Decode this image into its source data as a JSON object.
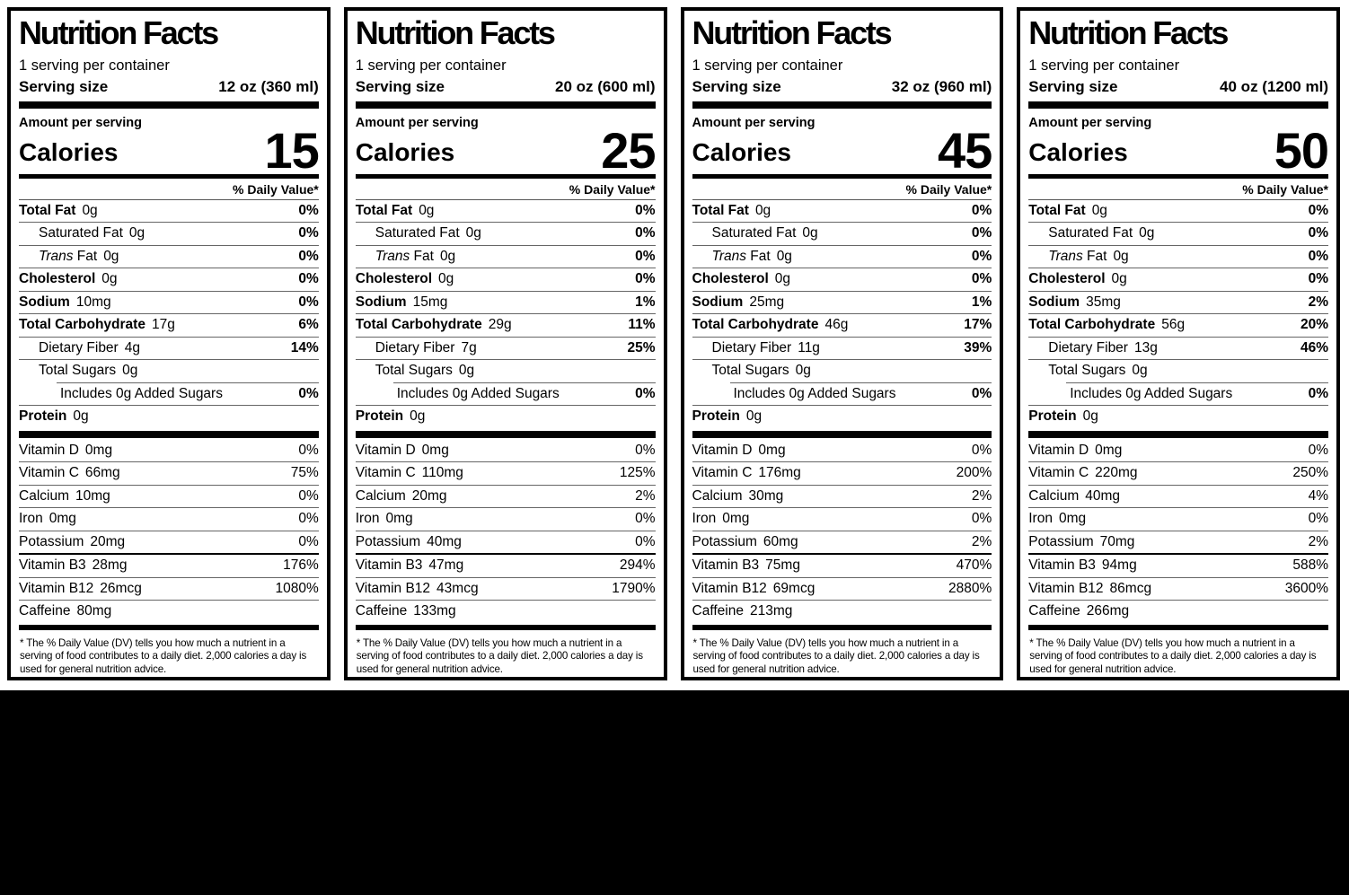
{
  "page": {
    "background_color": "#000000",
    "label_background_color": "#ffffff",
    "text_color": "#000000"
  },
  "labels": [
    {
      "title": "Nutrition Facts",
      "servings_per_container": "1 serving per container",
      "serving_size_label": "Serving size",
      "serving_size_value": "12 oz (360 ml)",
      "amount_per_serving": "Amount per serving",
      "calories_label": "Calories",
      "calories_value": "15",
      "daily_value_header": "% Daily Value*",
      "nutrients": [
        {
          "name": "Total Fat",
          "amount": "0g",
          "dv": "0%",
          "bold": true,
          "indent": 0
        },
        {
          "name": "Saturated Fat",
          "amount": "0g",
          "dv": "0%",
          "indent": 1
        },
        {
          "name_italic": "Trans",
          "name": " Fat",
          "amount": "0g",
          "dv": "0%",
          "indent": 1
        },
        {
          "name": "Cholesterol",
          "amount": "0g",
          "dv": "0%",
          "bold": true,
          "indent": 0
        },
        {
          "name": "Sodium",
          "amount": "10mg",
          "dv": "0%",
          "bold": true,
          "indent": 0
        },
        {
          "name": "Total Carbohydrate",
          "amount": "17g",
          "dv": "6%",
          "bold": true,
          "indent": 0
        },
        {
          "name": "Dietary Fiber",
          "amount": "4g",
          "dv": "14%",
          "indent": 1
        },
        {
          "name": "Total Sugars",
          "amount": "0g",
          "indent": 1
        },
        {
          "name": "Includes 0g Added Sugars",
          "dv": "0%",
          "indent": 2,
          "sep_indent": true
        },
        {
          "name": "Protein",
          "amount": "0g",
          "bold": true,
          "indent": 0
        }
      ],
      "vitamins": [
        {
          "name": "Vitamin D",
          "amount": "0mg",
          "dv": "0%"
        },
        {
          "name": "Vitamin C",
          "amount": "66mg",
          "dv": "75%"
        },
        {
          "name": "Calcium",
          "amount": "10mg",
          "dv": "0%"
        },
        {
          "name": "Iron",
          "amount": "0mg",
          "dv": "0%"
        },
        {
          "name": "Potassium",
          "amount": "20mg",
          "dv": "0%"
        },
        {
          "name": "Vitamin B3",
          "amount": "28mg",
          "dv": "176%",
          "thick_top": true
        },
        {
          "name": "Vitamin B12",
          "amount": "26mcg",
          "dv": "1080%"
        },
        {
          "name": "Caffeine",
          "amount": "80mg"
        }
      ],
      "footnote": "* The % Daily Value (DV) tells you how much a nutrient in a serving of food contributes to a daily diet. 2,000 calories a day is used for general nutrition advice."
    },
    {
      "title": "Nutrition Facts",
      "servings_per_container": "1 serving per container",
      "serving_size_label": "Serving size",
      "serving_size_value": "20 oz (600 ml)",
      "amount_per_serving": "Amount per serving",
      "calories_label": "Calories",
      "calories_value": "25",
      "daily_value_header": "% Daily Value*",
      "nutrients": [
        {
          "name": "Total Fat",
          "amount": "0g",
          "dv": "0%",
          "bold": true,
          "indent": 0
        },
        {
          "name": "Saturated Fat",
          "amount": "0g",
          "dv": "0%",
          "indent": 1
        },
        {
          "name_italic": "Trans",
          "name": " Fat",
          "amount": "0g",
          "dv": "0%",
          "indent": 1
        },
        {
          "name": "Cholesterol",
          "amount": "0g",
          "dv": "0%",
          "bold": true,
          "indent": 0
        },
        {
          "name": "Sodium",
          "amount": "15mg",
          "dv": "1%",
          "bold": true,
          "indent": 0
        },
        {
          "name": "Total Carbohydrate",
          "amount": "29g",
          "dv": "11%",
          "bold": true,
          "indent": 0
        },
        {
          "name": "Dietary Fiber",
          "amount": "7g",
          "dv": "25%",
          "indent": 1
        },
        {
          "name": "Total Sugars",
          "amount": "0g",
          "indent": 1
        },
        {
          "name": "Includes 0g Added Sugars",
          "dv": "0%",
          "indent": 2,
          "sep_indent": true
        },
        {
          "name": "Protein",
          "amount": "0g",
          "bold": true,
          "indent": 0
        }
      ],
      "vitamins": [
        {
          "name": "Vitamin D",
          "amount": "0mg",
          "dv": "0%"
        },
        {
          "name": "Vitamin C",
          "amount": "110mg",
          "dv": "125%"
        },
        {
          "name": "Calcium",
          "amount": "20mg",
          "dv": "2%"
        },
        {
          "name": "Iron",
          "amount": "0mg",
          "dv": "0%"
        },
        {
          "name": "Potassium",
          "amount": "40mg",
          "dv": "0%"
        },
        {
          "name": "Vitamin B3",
          "amount": "47mg",
          "dv": "294%",
          "thick_top": true
        },
        {
          "name": "Vitamin B12",
          "amount": "43mcg",
          "dv": "1790%"
        },
        {
          "name": "Caffeine",
          "amount": "133mg"
        }
      ],
      "footnote": "* The % Daily Value (DV) tells you how much a nutrient in a serving of food contributes to a daily diet. 2,000 calories a day is used for general nutrition advice."
    },
    {
      "title": "Nutrition Facts",
      "servings_per_container": "1 serving per container",
      "serving_size_label": "Serving size",
      "serving_size_value": "32 oz (960 ml)",
      "amount_per_serving": "Amount per serving",
      "calories_label": "Calories",
      "calories_value": "45",
      "daily_value_header": "% Daily Value*",
      "nutrients": [
        {
          "name": "Total Fat",
          "amount": "0g",
          "dv": "0%",
          "bold": true,
          "indent": 0
        },
        {
          "name": "Saturated Fat",
          "amount": "0g",
          "dv": "0%",
          "indent": 1
        },
        {
          "name_italic": "Trans",
          "name": " Fat",
          "amount": "0g",
          "dv": "0%",
          "indent": 1
        },
        {
          "name": "Cholesterol",
          "amount": "0g",
          "dv": "0%",
          "bold": true,
          "indent": 0
        },
        {
          "name": "Sodium",
          "amount": "25mg",
          "dv": "1%",
          "bold": true,
          "indent": 0
        },
        {
          "name": "Total Carbohydrate",
          "amount": "46g",
          "dv": "17%",
          "bold": true,
          "indent": 0
        },
        {
          "name": "Dietary Fiber",
          "amount": "11g",
          "dv": "39%",
          "indent": 1
        },
        {
          "name": "Total Sugars",
          "amount": "0g",
          "indent": 1
        },
        {
          "name": "Includes 0g Added Sugars",
          "dv": "0%",
          "indent": 2,
          "sep_indent": true
        },
        {
          "name": "Protein",
          "amount": "0g",
          "bold": true,
          "indent": 0
        }
      ],
      "vitamins": [
        {
          "name": "Vitamin D",
          "amount": "0mg",
          "dv": "0%"
        },
        {
          "name": "Vitamin C",
          "amount": "176mg",
          "dv": "200%"
        },
        {
          "name": "Calcium",
          "amount": "30mg",
          "dv": "2%"
        },
        {
          "name": "Iron",
          "amount": "0mg",
          "dv": "0%"
        },
        {
          "name": "Potassium",
          "amount": "60mg",
          "dv": "2%"
        },
        {
          "name": "Vitamin B3",
          "amount": "75mg",
          "dv": "470%",
          "thick_top": true
        },
        {
          "name": "Vitamin B12",
          "amount": "69mcg",
          "dv": "2880%"
        },
        {
          "name": "Caffeine",
          "amount": "213mg"
        }
      ],
      "footnote": "* The % Daily Value (DV) tells you how much a nutrient in a serving of food contributes to a daily diet. 2,000 calories a day is used for general nutrition advice."
    },
    {
      "title": "Nutrition Facts",
      "servings_per_container": "1 serving per container",
      "serving_size_label": "Serving size",
      "serving_size_value": "40 oz (1200 ml)",
      "amount_per_serving": "Amount per serving",
      "calories_label": "Calories",
      "calories_value": "50",
      "daily_value_header": "% Daily Value*",
      "nutrients": [
        {
          "name": "Total Fat",
          "amount": "0g",
          "dv": "0%",
          "bold": true,
          "indent": 0
        },
        {
          "name": "Saturated Fat",
          "amount": "0g",
          "dv": "0%",
          "indent": 1
        },
        {
          "name_italic": "Trans",
          "name": " Fat",
          "amount": "0g",
          "dv": "0%",
          "indent": 1
        },
        {
          "name": "Cholesterol",
          "amount": "0g",
          "dv": "0%",
          "bold": true,
          "indent": 0
        },
        {
          "name": "Sodium",
          "amount": "35mg",
          "dv": "2%",
          "bold": true,
          "indent": 0
        },
        {
          "name": "Total Carbohydrate",
          "amount": "56g",
          "dv": "20%",
          "bold": true,
          "indent": 0
        },
        {
          "name": "Dietary Fiber",
          "amount": "13g",
          "dv": "46%",
          "indent": 1
        },
        {
          "name": "Total Sugars",
          "amount": "0g",
          "indent": 1
        },
        {
          "name": "Includes 0g Added Sugars",
          "dv": "0%",
          "indent": 2,
          "sep_indent": true
        },
        {
          "name": "Protein",
          "amount": "0g",
          "bold": true,
          "indent": 0
        }
      ],
      "vitamins": [
        {
          "name": "Vitamin D",
          "amount": "0mg",
          "dv": "0%"
        },
        {
          "name": "Vitamin C",
          "amount": "220mg",
          "dv": "250%"
        },
        {
          "name": "Calcium",
          "amount": "40mg",
          "dv": "4%"
        },
        {
          "name": "Iron",
          "amount": "0mg",
          "dv": "0%"
        },
        {
          "name": "Potassium",
          "amount": "70mg",
          "dv": "2%"
        },
        {
          "name": "Vitamin B3",
          "amount": "94mg",
          "dv": "588%",
          "thick_top": true
        },
        {
          "name": "Vitamin B12",
          "amount": "86mcg",
          "dv": "3600%"
        },
        {
          "name": "Caffeine",
          "amount": "266mg"
        }
      ],
      "footnote": "* The % Daily Value (DV) tells you how much a nutrient in a serving of food contributes to a daily diet. 2,000 calories a day is used for general nutrition advice."
    }
  ]
}
